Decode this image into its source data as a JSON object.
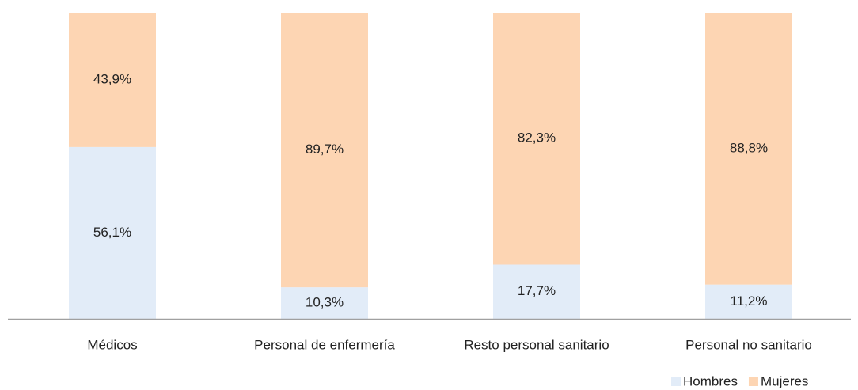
{
  "chart_data": {
    "type": "bar",
    "stacked": true,
    "categories": [
      "Médicos",
      "Personal de enfermería",
      "Resto personal sanitario",
      "Personal no sanitario"
    ],
    "series": [
      {
        "name": "Hombres",
        "color": "#e2ecf8",
        "values": [
          56.1,
          10.3,
          17.7,
          11.2
        ],
        "value_labels": [
          "56,1%",
          "10,3%",
          "17,7%",
          "11,2%"
        ]
      },
      {
        "name": "Mujeres",
        "color": "#fdd5b3",
        "values": [
          43.9,
          89.7,
          82.3,
          88.8
        ],
        "value_labels": [
          "43,9%",
          "89,7%",
          "82,3%",
          "88,8%"
        ]
      }
    ],
    "legend": "bottom-right"
  }
}
